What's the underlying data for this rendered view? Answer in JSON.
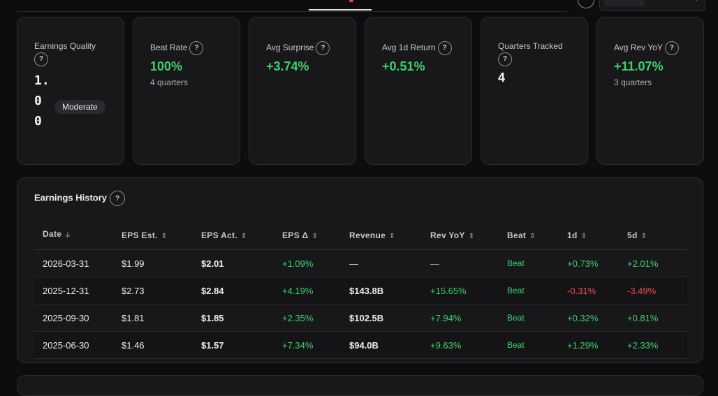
{
  "metrics": [
    {
      "label": "Beat Rate",
      "value": "100%",
      "sub": "4 quarters"
    },
    {
      "label": "Avg Surprise",
      "value": "+3.74%",
      "sub": ""
    },
    {
      "label": "Avg 1d Return",
      "value": "+0.51%",
      "sub": ""
    },
    {
      "label": "Quarters Tracked",
      "value": "4",
      "sub": ""
    },
    {
      "label": "Avg Rev YoY",
      "value": "+11.07%",
      "sub": "3 quarters"
    }
  ],
  "earnings_quality": {
    "label": "Earnings Quality",
    "value": "1.00",
    "badge": "Moderate"
  },
  "help_glyph": "?",
  "history": {
    "title": "Earnings History",
    "columns": [
      "Date",
      "EPS Est.",
      "EPS Act.",
      "EPS Δ",
      "Revenue",
      "Rev YoY",
      "Beat",
      "1d",
      "5d"
    ],
    "rows": [
      {
        "date": "2026-03-31",
        "eps_est": "$1.99",
        "eps_act": "$2.01",
        "eps_delta": "+1.09%",
        "revenue": "—",
        "rev_yoy": "—",
        "beat": "Beat",
        "d1": "+0.73%",
        "d5": "+2.01%"
      },
      {
        "date": "2025-12-31",
        "eps_est": "$2.73",
        "eps_act": "$2.84",
        "eps_delta": "+4.19%",
        "revenue": "$143.8B",
        "rev_yoy": "+15.65%",
        "beat": "Beat",
        "d1": "-0.31%",
        "d5": "-3.49%"
      },
      {
        "date": "2025-09-30",
        "eps_est": "$1.81",
        "eps_act": "$1.85",
        "eps_delta": "+2.35%",
        "revenue": "$102.5B",
        "rev_yoy": "+7.94%",
        "beat": "Beat",
        "d1": "+0.32%",
        "d5": "+0.81%"
      },
      {
        "date": "2025-06-30",
        "eps_est": "$1.46",
        "eps_act": "$1.57",
        "eps_delta": "+7.34%",
        "revenue": "$94.0B",
        "rev_yoy": "+9.63%",
        "beat": "Beat",
        "d1": "+1.29%",
        "d5": "+2.33%"
      }
    ]
  },
  "colors": {
    "positive": "#3ecf6a",
    "negative": "#ef4b4b",
    "background": "#0d0d0f",
    "card": "#18181b"
  }
}
